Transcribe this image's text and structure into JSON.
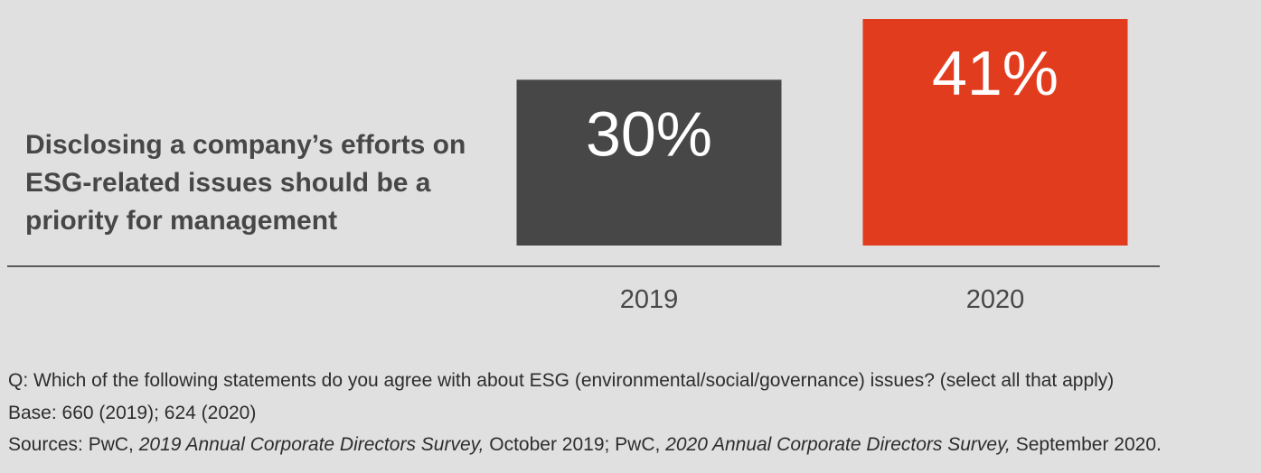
{
  "statement": "Disclosing a company’s efforts on ESG-related issues should be a priority for management",
  "chart_data": {
    "type": "bar",
    "categories": [
      "2019",
      "2020"
    ],
    "values": [
      30,
      41
    ],
    "value_labels": [
      "30%",
      "41%"
    ],
    "colors": [
      "#474747",
      "#e23c1e"
    ],
    "ylim": [
      0,
      41
    ],
    "grid": false,
    "title": "Disclosing a company’s efforts on ESG-related issues should be a priority for management",
    "xlabel": "",
    "ylabel": ""
  },
  "notes": {
    "question": "Q: Which of the following statements do you agree with about ESG (environmental/social/governance) issues? (select all that apply)",
    "base": "Base: 660 (2019); 624 (2020)",
    "sources_prefix": "Sources: PwC, ",
    "source_2019_title": "2019 Annual Corporate Directors Survey,",
    "source_2019_date": " October 2019; PwC, ",
    "source_2020_title": "2020 Annual Corporate Directors Survey,",
    "source_2020_date": " September 2020."
  }
}
